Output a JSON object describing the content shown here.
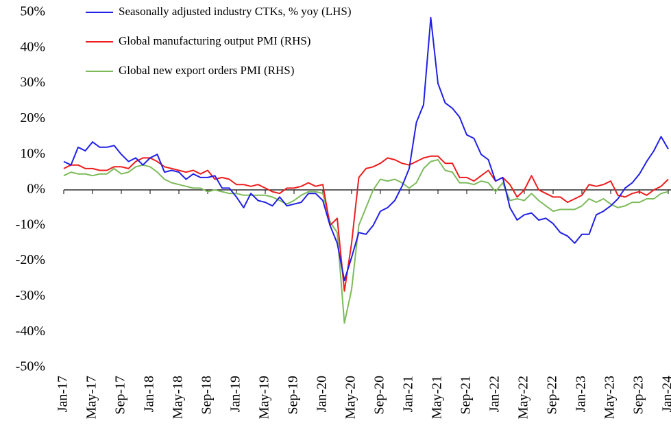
{
  "chart_data": {
    "type": "line",
    "categories": [
      "Jan-17",
      null,
      null,
      null,
      "May-17",
      null,
      null,
      null,
      "Sep-17",
      null,
      null,
      null,
      "Jan-18",
      null,
      null,
      null,
      "May-18",
      null,
      null,
      null,
      "Sep-18",
      null,
      null,
      null,
      "Jan-19",
      null,
      null,
      null,
      "May-19",
      null,
      null,
      null,
      "Sep-19",
      null,
      null,
      null,
      "Jan-20",
      null,
      null,
      null,
      "May-20",
      null,
      null,
      null,
      "Sep-20",
      null,
      null,
      null,
      "Jan-21",
      null,
      null,
      null,
      "May-21",
      null,
      null,
      null,
      "Sep-21",
      null,
      null,
      null,
      "Jan-22",
      null,
      null,
      null,
      "May-22",
      null,
      null,
      null,
      "Sep-22",
      null,
      null,
      null,
      "Jan-23",
      null,
      null,
      null,
      "May-23",
      null,
      null,
      null,
      "Sep-23",
      null,
      null,
      null,
      "Jan-24"
    ],
    "series": [
      {
        "name": "Seasonally adjusted industry CTKs, % yoy (LHS)",
        "color": "#1f1fe6",
        "values": [
          8,
          7,
          12,
          11,
          13.5,
          12,
          12,
          12.5,
          10,
          8,
          9,
          7,
          9,
          10,
          5,
          5.5,
          5,
          3,
          4.5,
          3.5,
          3.5,
          4,
          0.5,
          0.5,
          -2,
          -5,
          -1,
          -3,
          -3.5,
          -4.5,
          -2,
          -4.5,
          -4,
          -3.5,
          -1,
          -1,
          -3,
          -10,
          -15,
          -25.5,
          -19,
          -12,
          -12.5,
          -10,
          -6,
          -5,
          -3,
          1,
          6,
          19,
          24,
          48.5,
          30,
          24.5,
          23,
          20.5,
          15.5,
          14.5,
          10,
          8.5,
          2.5,
          3.5,
          -5,
          -8.5,
          -7,
          -6.5,
          -8.5,
          -8,
          -9.5,
          -12,
          -13,
          -15,
          -12.5,
          -12.5,
          -7,
          -6,
          -4.5,
          -2.5,
          0.5,
          2,
          4.5,
          8,
          11,
          15,
          11.5
        ]
      },
      {
        "name": "Global manufacturing output PMI (RHS)",
        "color": "#ee1c1c",
        "values": [
          6,
          7,
          7,
          6,
          6,
          5.5,
          5.5,
          6.5,
          6.5,
          6,
          8,
          9,
          9,
          8,
          6.5,
          6,
          5.5,
          5,
          5.5,
          4.5,
          5.5,
          3,
          3.5,
          3,
          1.5,
          1.5,
          1,
          1.5,
          0.5,
          -0.5,
          -1,
          0.5,
          0.5,
          1,
          2,
          1,
          1.5,
          -10,
          -8,
          -28.5,
          -15,
          3.5,
          6,
          6.5,
          7.5,
          9,
          8.5,
          7.5,
          7,
          8,
          9,
          9.5,
          9.5,
          7.5,
          7.5,
          3.5,
          3.5,
          2.5,
          4,
          5.5,
          2.5,
          3.5,
          1.5,
          -2,
          0,
          4,
          0,
          -1,
          -2,
          -2,
          -3.5,
          -2.5,
          -1.5,
          1.5,
          1,
          1.5,
          2.5,
          -1.5,
          -2,
          -1,
          -0.5,
          -1.5,
          0,
          1,
          3
        ]
      },
      {
        "name": "Global new export orders PMI (RHS)",
        "color": "#7dba5a",
        "values": [
          4,
          5,
          4.5,
          4.5,
          4,
          4.5,
          4.5,
          6,
          4.5,
          5,
          6.5,
          7,
          6.5,
          5,
          3,
          2,
          1.5,
          1,
          0.5,
          0.5,
          -0.5,
          0,
          -0.5,
          -1,
          -1,
          -1.5,
          -1.5,
          -1.5,
          -1.5,
          -2,
          -3,
          -4,
          -3,
          -1.5,
          -0.5,
          -0.5,
          -1,
          -9,
          -12,
          -37.5,
          -28,
          -10,
          -5,
          0,
          3,
          2.5,
          3,
          2,
          0.5,
          2,
          6,
          8,
          8.5,
          5.5,
          5,
          2,
          2,
          1.5,
          2.5,
          2,
          -0.5,
          2,
          -3,
          -2.5,
          -3,
          -1,
          -3,
          -4.5,
          -6,
          -5.5,
          -5.5,
          -5.5,
          -4.5,
          -2.5,
          -3.5,
          -2.5,
          -4,
          -5,
          -4.5,
          -3.5,
          -3.5,
          -2.5,
          -2.5,
          -1,
          -0.5
        ]
      }
    ],
    "ylim": [
      -50,
      50
    ],
    "yticks": [
      {
        "value": -50,
        "label": "-50%"
      },
      {
        "value": -40,
        "label": "-40%"
      },
      {
        "value": -30,
        "label": "-30%"
      },
      {
        "value": -20,
        "label": "-20%"
      },
      {
        "value": -10,
        "label": "-10%"
      },
      {
        "value": 0,
        "label": "0%"
      },
      {
        "value": 10,
        "label": "10%"
      },
      {
        "value": 20,
        "label": "20%"
      },
      {
        "value": 30,
        "label": "30%"
      },
      {
        "value": 40,
        "label": "40%"
      },
      {
        "value": 50,
        "label": "50%"
      }
    ]
  }
}
